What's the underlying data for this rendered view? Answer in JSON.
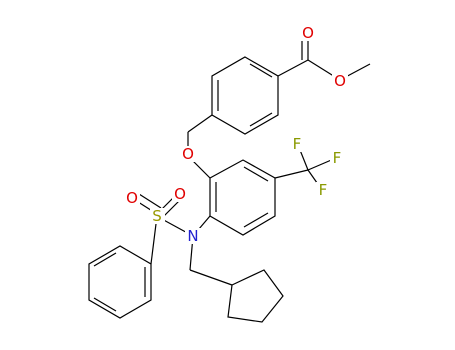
{
  "atoms": [
    "O",
    "O",
    "O",
    "F",
    "F",
    "F",
    "S",
    "O",
    "O",
    "N"
  ]
}
